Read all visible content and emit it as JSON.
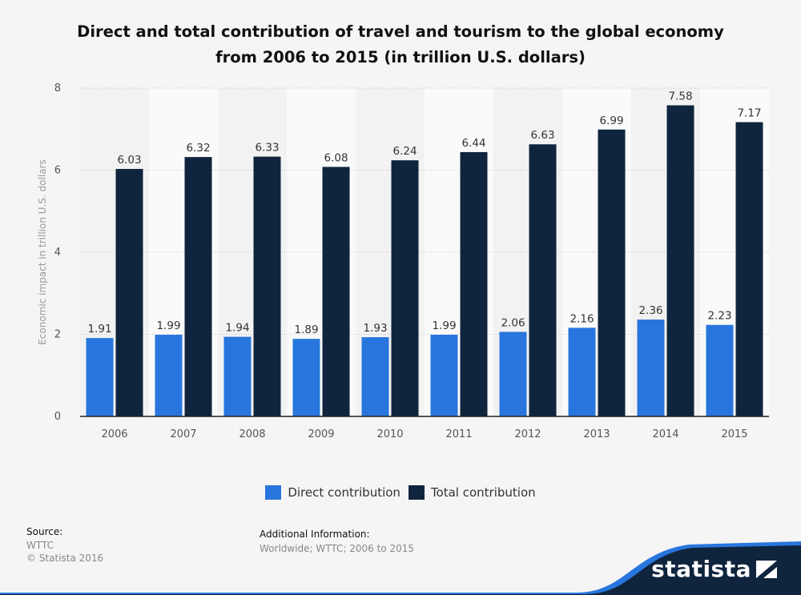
{
  "title_line1": "Direct and total contribution of travel and tourism to the global economy",
  "title_line2": "from 2006 to 2015 (in trillion U.S. dollars)",
  "chart_data": {
    "type": "bar",
    "title": "Direct and total contribution of travel and tourism to the global economy from 2006 to 2015 (in trillion U.S. dollars)",
    "categories": [
      "2006",
      "2007",
      "2008",
      "2009",
      "2010",
      "2011",
      "2012",
      "2013",
      "2014",
      "2015"
    ],
    "series": [
      {
        "name": "Direct contribution",
        "color": "#2876dd",
        "values": [
          1.91,
          1.99,
          1.94,
          1.89,
          1.93,
          1.99,
          2.06,
          2.16,
          2.36,
          2.23
        ]
      },
      {
        "name": "Total contribution",
        "color": "#0f243d",
        "values": [
          6.03,
          6.32,
          6.33,
          6.08,
          6.24,
          6.44,
          6.63,
          6.99,
          7.58,
          7.17
        ]
      }
    ],
    "xlabel": "",
    "ylabel": "Economic impact in trillion U.S. dollars",
    "ylim": [
      0,
      8
    ],
    "yticks": [
      0,
      2,
      4,
      6,
      8
    ],
    "grid": true,
    "legend": "bottom"
  },
  "legend": [
    {
      "label": "Direct contribution",
      "color": "#2876dd"
    },
    {
      "label": "Total contribution",
      "color": "#0f243d"
    }
  ],
  "footer": {
    "source_label": "Source:",
    "source_value": "WTTC",
    "copyright": "© Statista 2016",
    "info_label": "Additional Information:",
    "info_value": "Worldwide; WTTC; 2006 to 2015"
  },
  "brand": {
    "name": "statista",
    "band_color": "#0f243d",
    "accent_color": "#2876dd"
  }
}
